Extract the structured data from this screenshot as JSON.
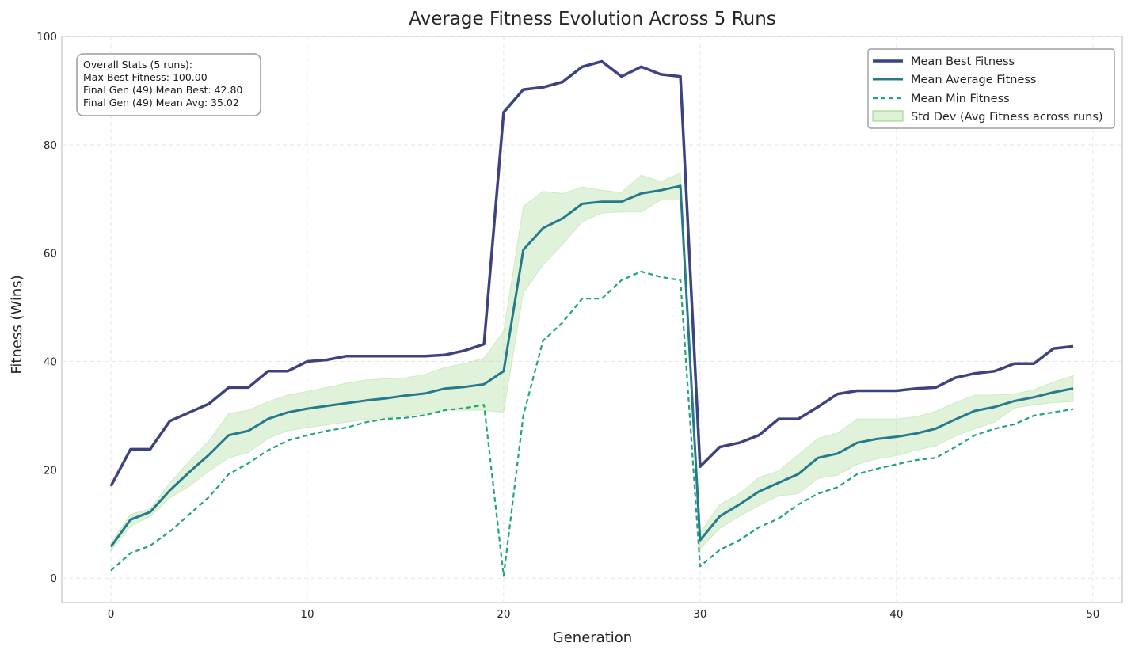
{
  "chart_data": {
    "type": "line",
    "title": "Average Fitness Evolution Across 5 Runs",
    "xlabel": "Generation",
    "ylabel": "Fitness (Wins)",
    "xlim": [
      -2.5,
      51.5
    ],
    "ylim": [
      -4.5,
      100
    ],
    "xticks": [
      0,
      10,
      20,
      30,
      40,
      50
    ],
    "yticks": [
      0,
      20,
      40,
      60,
      80,
      100
    ],
    "grid": true,
    "legend_position": "top-right",
    "x": [
      0,
      1,
      2,
      3,
      4,
      5,
      6,
      7,
      8,
      9,
      10,
      11,
      12,
      13,
      14,
      15,
      16,
      17,
      18,
      19,
      20,
      21,
      22,
      23,
      24,
      25,
      26,
      27,
      28,
      29,
      30,
      31,
      32,
      33,
      34,
      35,
      36,
      37,
      38,
      39,
      40,
      41,
      42,
      43,
      44,
      45,
      46,
      47,
      48,
      49
    ],
    "series": [
      {
        "name": "Mean Best Fitness",
        "color": "#3c437e",
        "style": "solid",
        "values": [
          17.0,
          23.8,
          23.8,
          29.0,
          30.6,
          32.2,
          35.2,
          35.2,
          38.2,
          38.2,
          40.0,
          40.3,
          41.0,
          41.0,
          41.0,
          41.0,
          41.0,
          41.2,
          42.0,
          43.2,
          86.0,
          90.2,
          90.6,
          91.6,
          94.4,
          95.4,
          92.6,
          94.4,
          93.0,
          92.6,
          20.6,
          24.2,
          25.0,
          26.4,
          29.4,
          29.4,
          31.6,
          34.0,
          34.6,
          34.6,
          34.6,
          35.0,
          35.2,
          37.0,
          37.8,
          38.2,
          39.6,
          39.6,
          42.4,
          42.8
        ]
      },
      {
        "name": "Mean Average Fitness",
        "color": "#277a8c",
        "style": "solid",
        "values": [
          5.8,
          10.8,
          12.2,
          16.2,
          19.6,
          22.8,
          26.4,
          27.2,
          29.4,
          30.6,
          31.3,
          31.8,
          32.3,
          32.8,
          33.2,
          33.7,
          34.1,
          35.0,
          35.3,
          35.8,
          38.2,
          60.6,
          64.6,
          66.4,
          69.1,
          69.5,
          69.5,
          71.0,
          71.6,
          72.4,
          7.0,
          11.4,
          13.6,
          16.0,
          17.6,
          19.2,
          22.2,
          23.0,
          25.0,
          25.7,
          26.1,
          26.7,
          27.6,
          29.3,
          30.9,
          31.6,
          32.7,
          33.4,
          34.3,
          35.02
        ]
      },
      {
        "name": "Mean Min Fitness",
        "color": "#1fa57a",
        "style": "dashed",
        "values": [
          1.4,
          4.6,
          6.0,
          8.6,
          11.8,
          15.0,
          19.2,
          21.2,
          23.6,
          25.4,
          26.4,
          27.2,
          27.8,
          28.8,
          29.4,
          29.6,
          30.1,
          31.0,
          31.4,
          32.0,
          0.4,
          30.0,
          43.8,
          47.2,
          51.6,
          51.6,
          55.0,
          56.6,
          55.6,
          55.0,
          2.2,
          5.2,
          7.0,
          9.4,
          11.0,
          13.6,
          15.6,
          16.8,
          19.2,
          20.2,
          21.0,
          21.8,
          22.2,
          24.2,
          26.4,
          27.6,
          28.4,
          30.0,
          30.6,
          31.2
        ]
      }
    ],
    "band": {
      "name": "Std Dev (Avg Fitness across runs)",
      "color": "#90d57a",
      "upper": [
        6.6,
        11.8,
        12.8,
        17.6,
        21.6,
        25.4,
        30.4,
        31.0,
        32.6,
        33.8,
        34.5,
        35.2,
        36.0,
        36.6,
        36.8,
        37.0,
        37.6,
        38.9,
        39.6,
        40.6,
        45.6,
        68.6,
        71.4,
        71.0,
        72.2,
        71.6,
        71.2,
        74.4,
        73.2,
        74.8,
        8.4,
        13.6,
        15.6,
        18.6,
        19.8,
        22.8,
        25.8,
        26.8,
        29.4,
        29.4,
        29.4,
        29.8,
        30.8,
        32.4,
        33.8,
        33.8,
        34.0,
        34.8,
        36.2,
        37.4
      ],
      "lower": [
        5.0,
        9.6,
        11.4,
        14.8,
        17.0,
        19.8,
        22.2,
        23.2,
        25.8,
        27.2,
        27.8,
        28.3,
        28.8,
        29.3,
        29.6,
        30.0,
        30.4,
        31.0,
        31.0,
        31.0,
        30.6,
        52.6,
        57.8,
        61.6,
        65.8,
        67.4,
        67.6,
        67.6,
        69.8,
        69.8,
        5.4,
        9.2,
        11.4,
        13.4,
        15.2,
        15.6,
        18.4,
        19.0,
        21.0,
        22.0,
        22.6,
        23.6,
        24.4,
        26.2,
        27.6,
        28.8,
        31.4,
        32.0,
        32.4,
        32.6
      ]
    },
    "annotation": {
      "lines": [
        "Overall Stats (5 runs):",
        "Max Best Fitness: 100.00",
        "Final Gen (49) Mean Best: 42.80",
        "Final Gen (49) Mean Avg: 35.02"
      ],
      "position": "top-left"
    }
  }
}
